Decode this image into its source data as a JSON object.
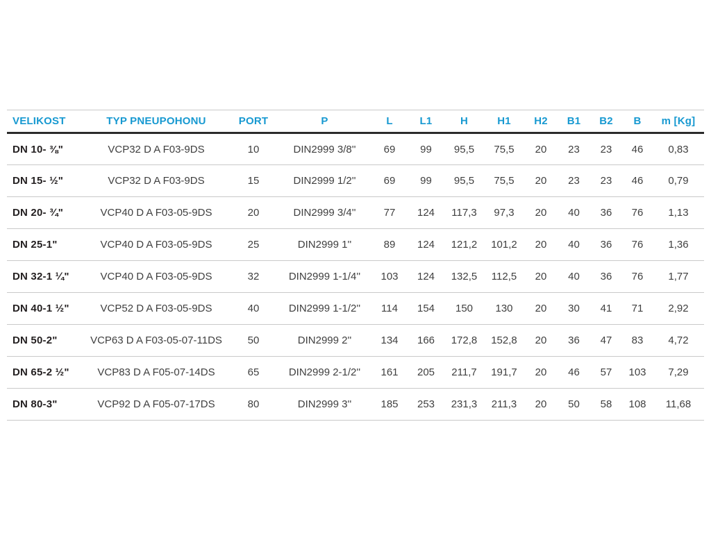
{
  "table": {
    "columns": [
      {
        "id": "velikost",
        "label": "VELIKOST"
      },
      {
        "id": "typ-pneupohonu",
        "label": "TYP PNEUPOHONU"
      },
      {
        "id": "port",
        "label": "PORT"
      },
      {
        "id": "p",
        "label": "P"
      },
      {
        "id": "l",
        "label": "L"
      },
      {
        "id": "l1",
        "label": "L1"
      },
      {
        "id": "h",
        "label": "H"
      },
      {
        "id": "h1",
        "label": "H1"
      },
      {
        "id": "h2",
        "label": "H2"
      },
      {
        "id": "b1",
        "label": "B1"
      },
      {
        "id": "b2",
        "label": "B2"
      },
      {
        "id": "b",
        "label": "B"
      },
      {
        "id": "m-kg",
        "label": "m [Kg]"
      }
    ],
    "rows": [
      [
        "DN 10- ⅜\"",
        "VCP32 D A F03-9DS",
        "10",
        "DIN2999 3/8''",
        "69",
        "99",
        "95,5",
        "75,5",
        "20",
        "23",
        "23",
        "46",
        "0,83"
      ],
      [
        "DN 15- ½\"",
        "VCP32 D A F03-9DS",
        "15",
        "DIN2999 1/2''",
        "69",
        "99",
        "95,5",
        "75,5",
        "20",
        "23",
        "23",
        "46",
        "0,79"
      ],
      [
        "DN 20- ¾\"",
        "VCP40 D A F03-05-9DS",
        "20",
        "DIN2999 3/4''",
        "77",
        "124",
        "117,3",
        "97,3",
        "20",
        "40",
        "36",
        "76",
        "1,13"
      ],
      [
        "DN 25-1\"",
        "VCP40 D A F03-05-9DS",
        "25",
        "DIN2999 1''",
        "89",
        "124",
        "121,2",
        "101,2",
        "20",
        "40",
        "36",
        "76",
        "1,36"
      ],
      [
        "DN 32-1 ¼\"",
        "VCP40 D A F03-05-9DS",
        "32",
        "DIN2999 1-1/4''",
        "103",
        "124",
        "132,5",
        "112,5",
        "20",
        "40",
        "36",
        "76",
        "1,77"
      ],
      [
        "DN 40-1 ½\"",
        "VCP52 D A F03-05-9DS",
        "40",
        "DIN2999 1-1/2''",
        "114",
        "154",
        "150",
        "130",
        "20",
        "30",
        "41",
        "71",
        "2,92"
      ],
      [
        "DN 50-2\"",
        "VCP63 D A F03-05-07-11DS",
        "50",
        "DIN2999 2''",
        "134",
        "166",
        "172,8",
        "152,8",
        "20",
        "36",
        "47",
        "83",
        "4,72"
      ],
      [
        "DN 65-2 ½\"",
        "VCP83 D A F05-07-14DS",
        "65",
        "DIN2999 2-1/2''",
        "161",
        "205",
        "211,7",
        "191,7",
        "20",
        "46",
        "57",
        "103",
        "7,29"
      ],
      [
        "DN 80-3\"",
        "VCP92 D A F05-07-17DS",
        "80",
        "DIN2999 3''",
        "185",
        "253",
        "231,3",
        "211,3",
        "20",
        "50",
        "58",
        "108",
        "11,68"
      ]
    ]
  },
  "colors": {
    "header_text": "#1799d1",
    "body_text": "#3f3f3f",
    "row_label_text": "#231f20",
    "divider": "#c9c9c9",
    "header_rule": "#2b2b2b",
    "background": "#ffffff"
  }
}
